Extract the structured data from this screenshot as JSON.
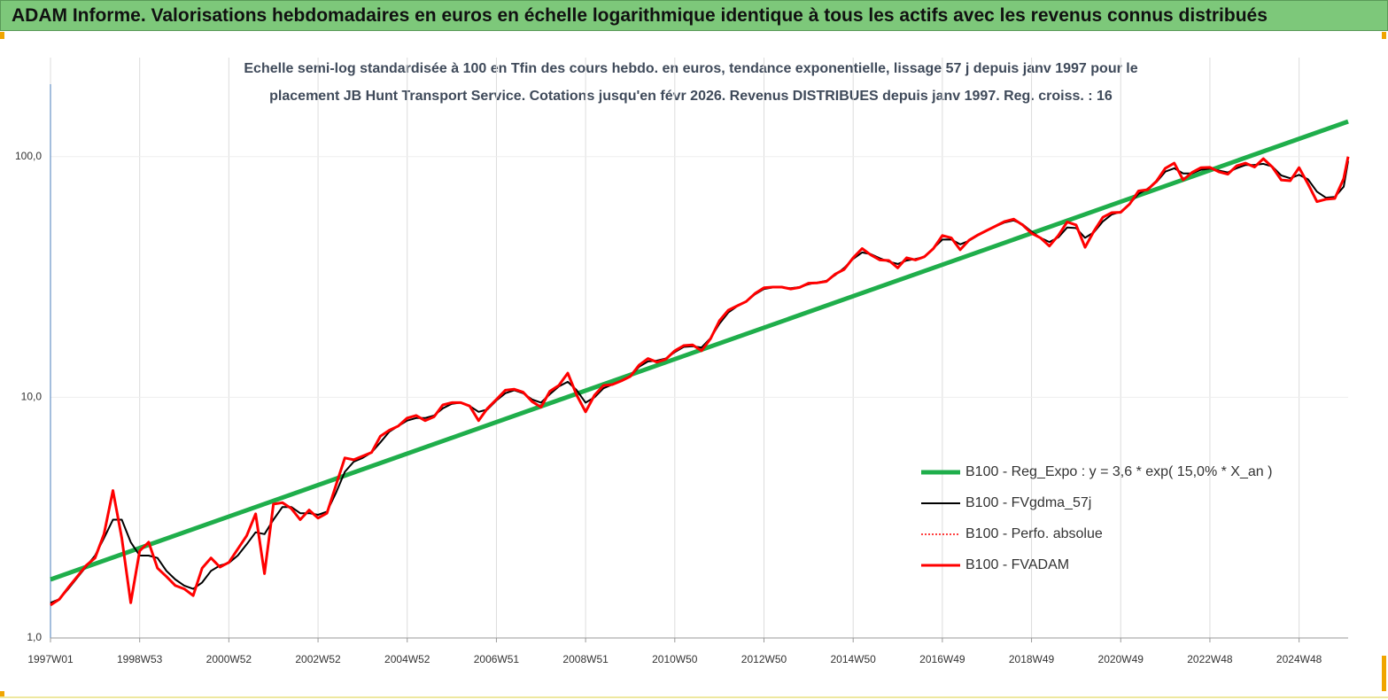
{
  "chart_data": {
    "type": "line",
    "title": "ADAM Informe. Valorisations hebdomadaires en euros en échelle logarithmique identique à tous les actifs avec les revenus connus distribués",
    "subtitle": [
      "Echelle semi-log standardisée à 100 en Tfin des cours hebdo. en euros, tendance exponentielle, lissage 57 j depuis janv 1997 pour le",
      "placement JB Hunt Transport Service.  Cotations jusqu'en févr 2026. Revenus DISTRIBUES depuis janv 1997. Reg. croiss. : 16"
    ],
    "log_y": true,
    "grid": true,
    "legend": "lower right",
    "xlim": [
      1997,
      2026.1
    ],
    "ylim": [
      1,
      200
    ],
    "yticks": [
      {
        "value": 1,
        "label": "1,0"
      },
      {
        "value": 10,
        "label": "10,0"
      },
      {
        "value": 100,
        "label": "100,0"
      }
    ],
    "xticks": [
      {
        "value": 1997,
        "label": "1997W01"
      },
      {
        "value": 1999,
        "label": "1998W53"
      },
      {
        "value": 2001,
        "label": "2000W52"
      },
      {
        "value": 2003,
        "label": "2002W52"
      },
      {
        "value": 2005,
        "label": "2004W52"
      },
      {
        "value": 2007,
        "label": "2006W51"
      },
      {
        "value": 2009,
        "label": "2008W51"
      },
      {
        "value": 2011,
        "label": "2010W50"
      },
      {
        "value": 2013,
        "label": "2012W50"
      },
      {
        "value": 2015,
        "label": "2014W50"
      },
      {
        "value": 2017,
        "label": "2016W49"
      },
      {
        "value": 2019,
        "label": "2018W49"
      },
      {
        "value": 2021,
        "label": "2020W49"
      },
      {
        "value": 2023,
        "label": "2022W48"
      },
      {
        "value": 2025,
        "label": "2024W48"
      }
    ],
    "x": [
      1997,
      1997.2,
      1997.4,
      1997.6,
      1997.8,
      1998,
      1998.2,
      1998.4,
      1998.6,
      1998.8,
      1999,
      1999.2,
      1999.4,
      1999.6,
      1999.8,
      2000,
      2000.2,
      2000.4,
      2000.6,
      2000.8,
      2001,
      2001.2,
      2001.4,
      2001.6,
      2001.8,
      2002,
      2002.2,
      2002.4,
      2002.6,
      2002.8,
      2003,
      2003.2,
      2003.4,
      2003.6,
      2003.8,
      2004,
      2004.2,
      2004.4,
      2004.6,
      2004.8,
      2005,
      2005.2,
      2005.4,
      2005.6,
      2005.8,
      2006,
      2006.2,
      2006.4,
      2006.6,
      2006.8,
      2007,
      2007.2,
      2007.4,
      2007.6,
      2007.8,
      2008,
      2008.2,
      2008.4,
      2008.6,
      2008.8,
      2009,
      2009.2,
      2009.4,
      2009.6,
      2009.8,
      2010,
      2010.2,
      2010.4,
      2010.6,
      2010.8,
      2011,
      2011.2,
      2011.4,
      2011.6,
      2011.8,
      2012,
      2012.2,
      2012.4,
      2012.6,
      2012.8,
      2013,
      2013.2,
      2013.4,
      2013.6,
      2013.8,
      2014,
      2014.2,
      2014.4,
      2014.6,
      2014.8,
      2015,
      2015.2,
      2015.4,
      2015.6,
      2015.8,
      2016,
      2016.2,
      2016.4,
      2016.6,
      2016.8,
      2017,
      2017.2,
      2017.4,
      2017.6,
      2017.8,
      2018,
      2018.2,
      2018.4,
      2018.6,
      2018.8,
      2019,
      2019.2,
      2019.4,
      2019.6,
      2019.8,
      2020,
      2020.2,
      2020.4,
      2020.6,
      2020.8,
      2021,
      2021.2,
      2021.4,
      2021.6,
      2021.8,
      2022,
      2022.2,
      2022.4,
      2022.6,
      2022.8,
      2023,
      2023.2,
      2023.4,
      2023.6,
      2023.8,
      2024,
      2024.2,
      2024.4,
      2024.6,
      2024.8,
      2025,
      2025.2,
      2025.4,
      2025.6,
      2025.8,
      2026,
      2026.1
    ],
    "series": [
      {
        "name": "B100 - Reg_Expo : y = 3,6 * exp( 15,0% *  X_an )",
        "color": "#1fae4b",
        "width": 5,
        "x": [
          1997,
          2026.1
        ],
        "values": [
          1.75,
          140
        ]
      },
      {
        "name": "B100 - FVgdma_57j",
        "color": "#000000",
        "width": 2,
        "values": [
          1.4,
          1.45,
          1.6,
          1.78,
          1.98,
          2.2,
          2.6,
          3.1,
          3.1,
          2.5,
          2.2,
          2.2,
          2.15,
          1.9,
          1.75,
          1.65,
          1.6,
          1.7,
          1.9,
          2.0,
          2.05,
          2.2,
          2.45,
          2.75,
          2.7,
          3.1,
          3.5,
          3.5,
          3.3,
          3.3,
          3.25,
          3.35,
          4.0,
          4.9,
          5.4,
          5.6,
          5.9,
          6.5,
          7.2,
          7.6,
          8.0,
          8.2,
          8.2,
          8.4,
          9.0,
          9.4,
          9.5,
          9.2,
          8.7,
          8.9,
          9.7,
          10.4,
          10.7,
          10.4,
          9.8,
          9.5,
          10.3,
          11.1,
          11.6,
          10.7,
          9.5,
          10.0,
          10.9,
          11.3,
          11.7,
          12.2,
          13.4,
          14.1,
          14.2,
          14.5,
          15.4,
          16.2,
          16.3,
          16.1,
          17.6,
          20.2,
          22.5,
          23.9,
          25,
          26.8,
          28.2,
          28.6,
          28.6,
          28.4,
          28.7,
          29.5,
          30,
          30.5,
          32.2,
          34.5,
          37.6,
          40,
          39.3,
          37.8,
          36.6,
          35.8,
          37,
          37.6,
          38.3,
          41.6,
          45.2,
          45.3,
          43.2,
          44.7,
          47.1,
          49.2,
          51.4,
          53.3,
          54.3,
          52.3,
          48.8,
          46,
          44.2,
          46.2,
          50.8,
          50.5,
          46,
          48.5,
          53.8,
          57.5,
          59,
          63.7,
          70,
          73.5,
          78.3,
          86.6,
          89.5,
          85.2,
          85.2,
          88.2,
          89.2,
          87.5,
          86,
          89.5,
          92.3,
          92.4,
          93.3,
          91,
          83.5,
          81.3,
          84,
          80.5,
          71.5,
          67.5,
          68,
          75,
          96
        ]
      },
      {
        "name": "B100 - Perfo. absolue",
        "color": "#ff0000",
        "width": 1.5,
        "dotted": true,
        "values": [
          1.37,
          1.45,
          1.62,
          1.8,
          2.0,
          2.15,
          2.7,
          4.1,
          2.6,
          1.4,
          2.3,
          2.5,
          1.95,
          1.8,
          1.65,
          1.6,
          1.5,
          1.95,
          2.15,
          1.97,
          2.06,
          2.34,
          2.66,
          3.28,
          1.85,
          3.6,
          3.65,
          3.45,
          3.1,
          3.4,
          3.15,
          3.3,
          4.3,
          5.6,
          5.5,
          5.7,
          5.9,
          6.9,
          7.3,
          7.6,
          8.2,
          8.4,
          8.0,
          8.3,
          9.3,
          9.5,
          9.5,
          9.2,
          8.0,
          9.0,
          9.8,
          10.7,
          10.8,
          10.5,
          9.6,
          9.1,
          10.6,
          11.2,
          12.6,
          10.2,
          8.7,
          10.2,
          11.2,
          11.3,
          11.7,
          12.2,
          13.6,
          14.5,
          14.0,
          14.4,
          15.6,
          16.4,
          16.5,
          15.6,
          17.5,
          20.8,
          23,
          24,
          25,
          27,
          28.5,
          28.7,
          28.7,
          28.2,
          28.6,
          29.8,
          29.9,
          30.3,
          32.5,
          34,
          38,
          41.5,
          39,
          37.2,
          37,
          34.5,
          38,
          37.2,
          38.4,
          41.5,
          47,
          46,
          41,
          45,
          47.3,
          49.4,
          51.5,
          53.8,
          55,
          52,
          48,
          46,
          42.5,
          47,
          53.5,
          52,
          42,
          49,
          56,
          58.5,
          58.7,
          63.5,
          72,
          72.9,
          79,
          89.5,
          94,
          80,
          86,
          90,
          90.2,
          86.5,
          84.5,
          91.5,
          94,
          90.5,
          98,
          90.5,
          80,
          79.4,
          90,
          77,
          65,
          66.5,
          67,
          81,
          100
        ]
      },
      {
        "name": "B100 - FVADAM",
        "color": "#ff0000",
        "width": 3,
        "values": [
          1.37,
          1.45,
          1.62,
          1.8,
          2.0,
          2.15,
          2.7,
          4.1,
          2.6,
          1.4,
          2.3,
          2.5,
          1.95,
          1.8,
          1.65,
          1.6,
          1.5,
          1.95,
          2.15,
          1.97,
          2.06,
          2.34,
          2.66,
          3.28,
          1.85,
          3.6,
          3.65,
          3.45,
          3.1,
          3.4,
          3.15,
          3.3,
          4.3,
          5.6,
          5.5,
          5.7,
          5.9,
          6.9,
          7.3,
          7.6,
          8.2,
          8.4,
          8.0,
          8.3,
          9.3,
          9.5,
          9.5,
          9.2,
          8.0,
          9.0,
          9.8,
          10.7,
          10.8,
          10.5,
          9.6,
          9.1,
          10.6,
          11.2,
          12.6,
          10.2,
          8.7,
          10.2,
          11.2,
          11.3,
          11.7,
          12.2,
          13.6,
          14.5,
          14.0,
          14.4,
          15.6,
          16.4,
          16.5,
          15.6,
          17.5,
          20.8,
          23,
          24,
          25,
          27,
          28.5,
          28.7,
          28.7,
          28.2,
          28.6,
          29.8,
          29.9,
          30.3,
          32.5,
          34,
          38,
          41.5,
          39,
          37.2,
          37,
          34.5,
          38,
          37.2,
          38.4,
          41.5,
          47,
          46,
          41,
          45,
          47.3,
          49.4,
          51.5,
          53.8,
          55,
          52,
          48,
          46,
          42.5,
          47,
          53.5,
          52,
          42,
          49,
          56,
          58.5,
          58.7,
          63.5,
          72,
          72.9,
          79,
          89.5,
          94,
          80,
          86,
          90,
          90.2,
          86.5,
          84.5,
          91.5,
          94,
          90.5,
          98,
          90.5,
          80,
          79.4,
          90,
          77,
          65,
          66.5,
          67,
          81,
          100
        ]
      }
    ]
  }
}
